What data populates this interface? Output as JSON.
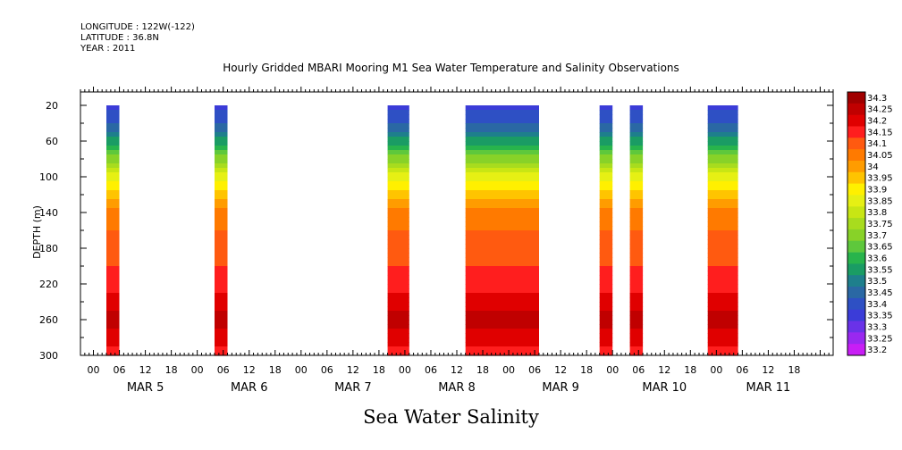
{
  "header": {
    "longitude": "LONGITUDE : 122W(-122)",
    "latitude": "LATITUDE : 36.8N",
    "year": "YEAR : 2011"
  },
  "chart_data": {
    "type": "heatmap",
    "title": "Hourly Gridded MBARI Mooring M1 Sea Water Temperature and Salinity Observations",
    "subtitle": "Sea Water Salinity",
    "ylabel": "DEPTH (m)",
    "xlabel": "",
    "y_ticks": [
      20,
      60,
      100,
      140,
      180,
      220,
      260,
      300
    ],
    "ylim": [
      300,
      5
    ],
    "x_hour_ticks": [
      "00",
      "06",
      "12",
      "18",
      "00",
      "06",
      "12",
      "18",
      "00",
      "06",
      "12",
      "18",
      "00",
      "06",
      "12",
      "18",
      "00",
      "06",
      "12",
      "18",
      "00",
      "06",
      "12",
      "18",
      "00",
      "06",
      "12",
      "18"
    ],
    "x_day_labels": [
      "MAR 5",
      "MAR 6",
      "MAR 7",
      "MAR 8",
      "MAR 9",
      "MAR 10",
      "MAR 11"
    ],
    "colorbar_levels": [
      "34.3",
      "34.25",
      "34.2",
      "34.15",
      "34.1",
      "34.05",
      "34",
      "33.95",
      "33.9",
      "33.85",
      "33.8",
      "33.75",
      "33.7",
      "33.65",
      "33.6",
      "33.55",
      "33.5",
      "33.45",
      "33.4",
      "33.35",
      "33.3",
      "33.25",
      "33.2"
    ],
    "colorbar_colors": [
      "#a00000",
      "#c00000",
      "#e00000",
      "#ff1e1e",
      "#ff5a10",
      "#ff7a00",
      "#ff9c00",
      "#ffc400",
      "#fff000",
      "#e6f014",
      "#c8e614",
      "#a8dc1e",
      "#88d228",
      "#5ec83c",
      "#28b44c",
      "#1a9c64",
      "#1e7f8c",
      "#2a68a4",
      "#2e50c4",
      "#3b3cd8",
      "#6a32e8",
      "#9a28f0",
      "#c81ef5"
    ],
    "segments": [
      {
        "start": "2011-03-05 03:00",
        "end": "2011-03-05 06:00"
      },
      {
        "start": "2011-03-06 04:00",
        "end": "2011-03-06 07:00"
      },
      {
        "start": "2011-03-07 20:00",
        "end": "2011-03-08 01:00"
      },
      {
        "start": "2011-03-08 14:00",
        "end": "2011-03-09 07:00"
      },
      {
        "start": "2011-03-09 21:00",
        "end": "2011-03-10 00:00"
      },
      {
        "start": "2011-03-10 04:00",
        "end": "2011-03-10 07:00"
      },
      {
        "start": "2011-03-10 22:00",
        "end": "2011-03-11 05:00"
      }
    ],
    "profile": [
      {
        "depth": 20,
        "value": 33.35
      },
      {
        "depth": 40,
        "value": 33.42
      },
      {
        "depth": 60,
        "value": 33.55
      },
      {
        "depth": 80,
        "value": 33.7
      },
      {
        "depth": 100,
        "value": 33.85
      },
      {
        "depth": 120,
        "value": 33.95
      },
      {
        "depth": 140,
        "value": 34.05
      },
      {
        "depth": 180,
        "value": 34.1
      },
      {
        "depth": 220,
        "value": 34.15
      },
      {
        "depth": 240,
        "value": 34.2
      },
      {
        "depth": 260,
        "value": 34.25
      },
      {
        "depth": 280,
        "value": 34.2
      },
      {
        "depth": 300,
        "value": 34.15
      }
    ]
  }
}
